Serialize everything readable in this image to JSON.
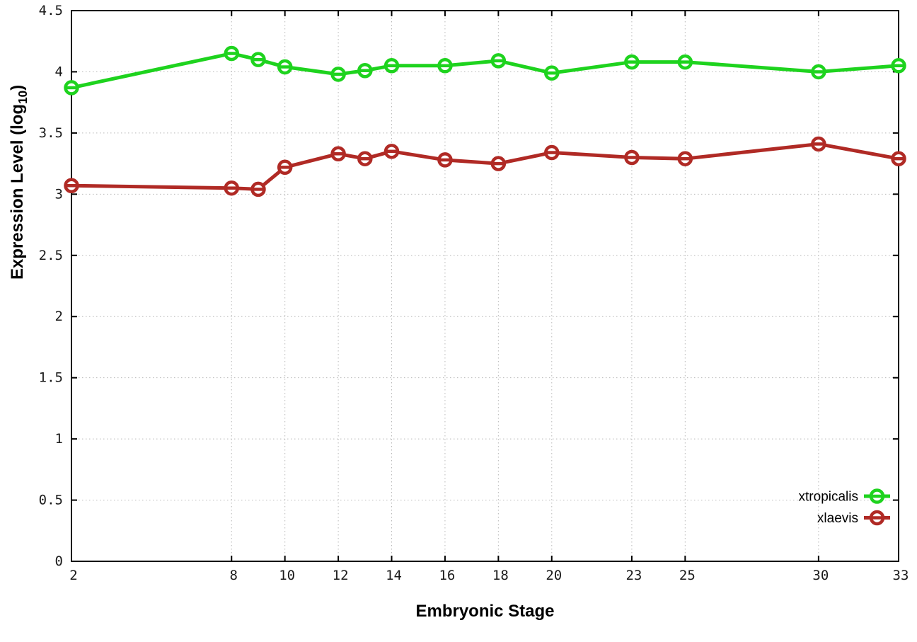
{
  "figure": {
    "background": "#ffffff",
    "axis_color": "#000000",
    "grid_color": "#b8b8b8",
    "tick_text_color": "#1a1a1a"
  },
  "chart_data": {
    "type": "line",
    "title": "",
    "xlabel": "Embryonic Stage",
    "ylabel": "Expression Level (log10)",
    "ylabel_parts": {
      "prefix": "Expression Level (log",
      "sub": "10",
      "suffix": ")"
    },
    "x": [
      2,
      8,
      9,
      10,
      12,
      13,
      14,
      16,
      18,
      20,
      23,
      25,
      30,
      33
    ],
    "series": [
      {
        "name": "xtropicalis",
        "color": "#1ed31e",
        "values": [
          3.87,
          4.15,
          4.1,
          4.04,
          3.98,
          4.01,
          4.05,
          4.05,
          4.09,
          3.99,
          4.08,
          4.08,
          4.0,
          4.05
        ]
      },
      {
        "name": "xlaevis",
        "color": "#b02a25",
        "values": [
          3.07,
          3.05,
          3.04,
          3.22,
          3.33,
          3.29,
          3.35,
          3.28,
          3.25,
          3.34,
          3.3,
          3.29,
          3.41,
          3.29
        ]
      }
    ],
    "xlim": [
      2,
      33
    ],
    "ylim": [
      0,
      4.5
    ],
    "xticks": [
      2,
      8,
      10,
      12,
      14,
      16,
      18,
      20,
      23,
      25,
      30,
      33
    ],
    "xtick_labels": [
      "2",
      "8",
      "10",
      "12",
      "14",
      "16",
      "18",
      "20",
      "23",
      "25",
      "30",
      "33"
    ],
    "yticks": [
      0,
      0.5,
      1,
      1.5,
      2,
      2.5,
      3,
      3.5,
      4,
      4.5
    ],
    "ytick_labels": [
      "0",
      "0.5",
      "1",
      "1.5",
      "2",
      "2.5",
      "3",
      "3.5",
      "4",
      "4.5"
    ],
    "grid": true,
    "grid_style": "dotted",
    "legend_position": "bottom-right",
    "legend": [
      "xtropicalis",
      "xlaevis"
    ]
  }
}
